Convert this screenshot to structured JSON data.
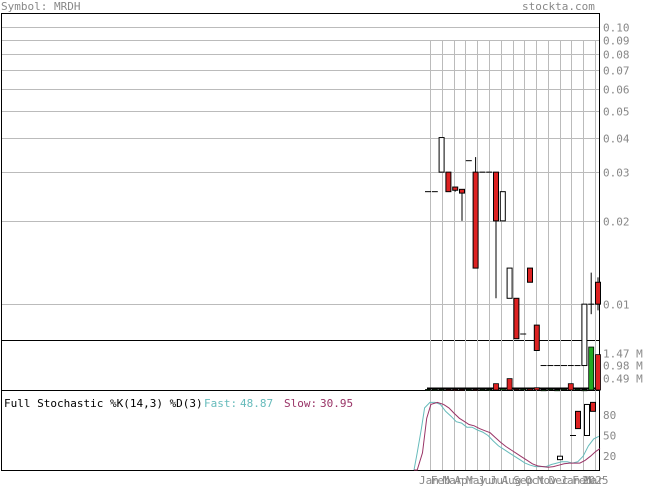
{
  "header": {
    "symbol_label": "Symbol: MRDH",
    "site": "stockta.com"
  },
  "colors": {
    "up": "#ffffff",
    "down": "#dd2222",
    "volume_up": "#22aa22",
    "grid": "#bbbbbb",
    "fast": "#66bbbb",
    "slow": "#993366"
  },
  "chart_data": [
    {
      "type": "candlestick",
      "panel": "price",
      "y_scale": "log",
      "ylim": [
        0.0055,
        0.11
      ],
      "y_ticks": [
        "0.10",
        "0.09",
        "0.08",
        "0.07",
        "0.06",
        "0.05",
        "0.04",
        "0.03",
        "0.02",
        "0.01"
      ],
      "x_months": [
        "Jan",
        "Feb",
        "Mar",
        "Apr",
        "May",
        "Jun",
        "Jul",
        "Aug",
        "Sep",
        "Oct",
        "Nov",
        "Dec",
        "Jan",
        "Feb",
        "Mar"
      ],
      "x_year": "2025",
      "candles": [
        {
          "o": 0.0255,
          "h": 0.0255,
          "l": 0.0255,
          "c": 0.0255
        },
        {
          "o": 0.0255,
          "h": 0.0255,
          "l": 0.0255,
          "c": 0.0255
        },
        {
          "o": 0.03,
          "h": 0.04,
          "l": 0.03,
          "c": 0.04
        },
        {
          "o": 0.03,
          "h": 0.03,
          "l": 0.0255,
          "c": 0.0255
        },
        {
          "o": 0.0265,
          "h": 0.0265,
          "l": 0.0255,
          "c": 0.0258
        },
        {
          "o": 0.026,
          "h": 0.026,
          "l": 0.02,
          "c": 0.0252
        },
        {
          "o": 0.033,
          "h": 0.033,
          "l": 0.033,
          "c": 0.033
        },
        {
          "o": 0.03,
          "h": 0.034,
          "l": 0.0135,
          "c": 0.0135
        },
        {
          "o": 0.03,
          "h": 0.03,
          "l": 0.03,
          "c": 0.03
        },
        {
          "o": 0.03,
          "h": 0.03,
          "l": 0.03,
          "c": 0.03
        },
        {
          "o": 0.03,
          "h": 0.03,
          "l": 0.0105,
          "c": 0.02
        },
        {
          "o": 0.02,
          "h": 0.0255,
          "l": 0.02,
          "c": 0.0255
        },
        {
          "o": 0.0105,
          "h": 0.0135,
          "l": 0.0105,
          "c": 0.0135
        },
        {
          "o": 0.0105,
          "h": 0.0105,
          "l": 0.0075,
          "c": 0.0075
        },
        {
          "o": 0.0078,
          "h": 0.0078,
          "l": 0.0078,
          "c": 0.0078
        },
        {
          "o": 0.0135,
          "h": 0.0135,
          "l": 0.012,
          "c": 0.012
        },
        {
          "o": 0.0084,
          "h": 0.0084,
          "l": 0.0068,
          "c": 0.0068
        },
        {
          "o": 0.006,
          "h": 0.006,
          "l": 0.006,
          "c": 0.006
        },
        {
          "o": 0.006,
          "h": 0.006,
          "l": 0.006,
          "c": 0.006
        },
        {
          "o": 0.006,
          "h": 0.006,
          "l": 0.006,
          "c": 0.006
        },
        {
          "o": 0.006,
          "h": 0.006,
          "l": 0.006,
          "c": 0.006
        },
        {
          "o": 0.006,
          "h": 0.006,
          "l": 0.006,
          "c": 0.006
        },
        {
          "o": 0.006,
          "h": 0.006,
          "l": 0.006,
          "c": 0.006
        },
        {
          "o": 0.006,
          "h": 0.01,
          "l": 0.006,
          "c": 0.01
        },
        {
          "o": 0.01,
          "h": 0.013,
          "l": 0.0092,
          "c": 0.01
        },
        {
          "o": 0.012,
          "h": 0.0125,
          "l": 0.0095,
          "c": 0.01
        }
      ]
    },
    {
      "type": "bar",
      "panel": "volume",
      "unit": "M",
      "ylim": [
        0,
        1.9
      ],
      "y_ticks": [
        "1.47 M",
        "0.98 M",
        "0.49 M"
      ],
      "values": [
        0.02,
        0.02,
        0.02,
        0.02,
        0.02,
        0.02,
        0.02,
        0.02,
        0.02,
        0.02,
        0.25,
        0.05,
        0.45,
        0.04,
        0.04,
        0.05,
        0.09,
        0.01,
        0.03,
        0.01,
        0.03,
        0.25,
        0.04,
        0.01,
        1.7,
        1.4
      ],
      "directions": [
        "u",
        "u",
        "u",
        "d",
        "d",
        "d",
        "u",
        "d",
        "u",
        "u",
        "d",
        "u",
        "d",
        "d",
        "u",
        "d",
        "d",
        "u",
        "u",
        "u",
        "u",
        "d",
        "u",
        "u",
        "u",
        "d"
      ]
    },
    {
      "type": "line",
      "panel": "stochastic",
      "title": "Full Stochastic %K(14,3) %D(3)",
      "fast_label": "Fast:",
      "fast_value": "48.87",
      "slow_label": "Slow:",
      "slow_value": "30.95",
      "ylim": [
        0,
        100
      ],
      "y_ticks": [
        "80",
        "50",
        "20"
      ],
      "series": [
        {
          "name": "Fast",
          "points": [
            [
              0,
              0
            ],
            [
              3,
              25
            ],
            [
              7,
              60
            ],
            [
              10,
              90
            ],
            [
              15,
              98
            ],
            [
              20,
              98
            ],
            [
              25,
              95
            ],
            [
              30,
              85
            ],
            [
              35,
              78
            ],
            [
              40,
              70
            ],
            [
              45,
              68
            ],
            [
              50,
              62
            ],
            [
              55,
              62
            ],
            [
              60,
              58
            ],
            [
              65,
              55
            ],
            [
              70,
              50
            ],
            [
              75,
              42
            ],
            [
              80,
              35
            ],
            [
              85,
              30
            ],
            [
              90,
              25
            ],
            [
              95,
              20
            ],
            [
              100,
              15
            ],
            [
              105,
              10
            ],
            [
              110,
              7
            ],
            [
              115,
              5
            ],
            [
              120,
              5
            ],
            [
              125,
              5
            ],
            [
              130,
              8
            ],
            [
              135,
              10
            ],
            [
              140,
              12
            ],
            [
              145,
              12
            ],
            [
              150,
              10
            ],
            [
              155,
              12
            ],
            [
              160,
              20
            ],
            [
              165,
              35
            ],
            [
              170,
              45
            ],
            [
              175,
              48.87
            ]
          ]
        },
        {
          "name": "Slow",
          "points": [
            [
              0,
              0
            ],
            [
              3,
              0
            ],
            [
              8,
              25
            ],
            [
              12,
              75
            ],
            [
              16,
              95
            ],
            [
              22,
              98
            ],
            [
              28,
              95
            ],
            [
              33,
              90
            ],
            [
              38,
              82
            ],
            [
              43,
              75
            ],
            [
              48,
              70
            ],
            [
              52,
              66
            ],
            [
              57,
              64
            ],
            [
              62,
              60
            ],
            [
              67,
              57
            ],
            [
              72,
              54
            ],
            [
              77,
              47
            ],
            [
              82,
              40
            ],
            [
              87,
              34
            ],
            [
              92,
              29
            ],
            [
              97,
              24
            ],
            [
              102,
              19
            ],
            [
              107,
              14
            ],
            [
              112,
              9
            ],
            [
              117,
              6
            ],
            [
              122,
              5
            ],
            [
              127,
              4
            ],
            [
              132,
              5
            ],
            [
              137,
              7
            ],
            [
              142,
              9
            ],
            [
              147,
              10
            ],
            [
              152,
              10
            ],
            [
              157,
              10
            ],
            [
              162,
              14
            ],
            [
              167,
              20
            ],
            [
              172,
              27
            ],
            [
              176,
              30.95
            ]
          ]
        }
      ],
      "stoch_boxes": [
        {
          "o": 20,
          "c": 15,
          "h": 20,
          "l": 15,
          "dir": "u"
        },
        {
          "o": 50,
          "c": 50,
          "h": 50,
          "l": 50,
          "dir": "u"
        },
        {
          "o": 85,
          "c": 60,
          "h": 85,
          "l": 60,
          "dir": "d"
        },
        {
          "o": 50,
          "c": 95,
          "h": 95,
          "l": 50,
          "dir": "u"
        },
        {
          "o": 98,
          "c": 85,
          "h": 98,
          "l": 85,
          "dir": "d"
        }
      ]
    }
  ]
}
